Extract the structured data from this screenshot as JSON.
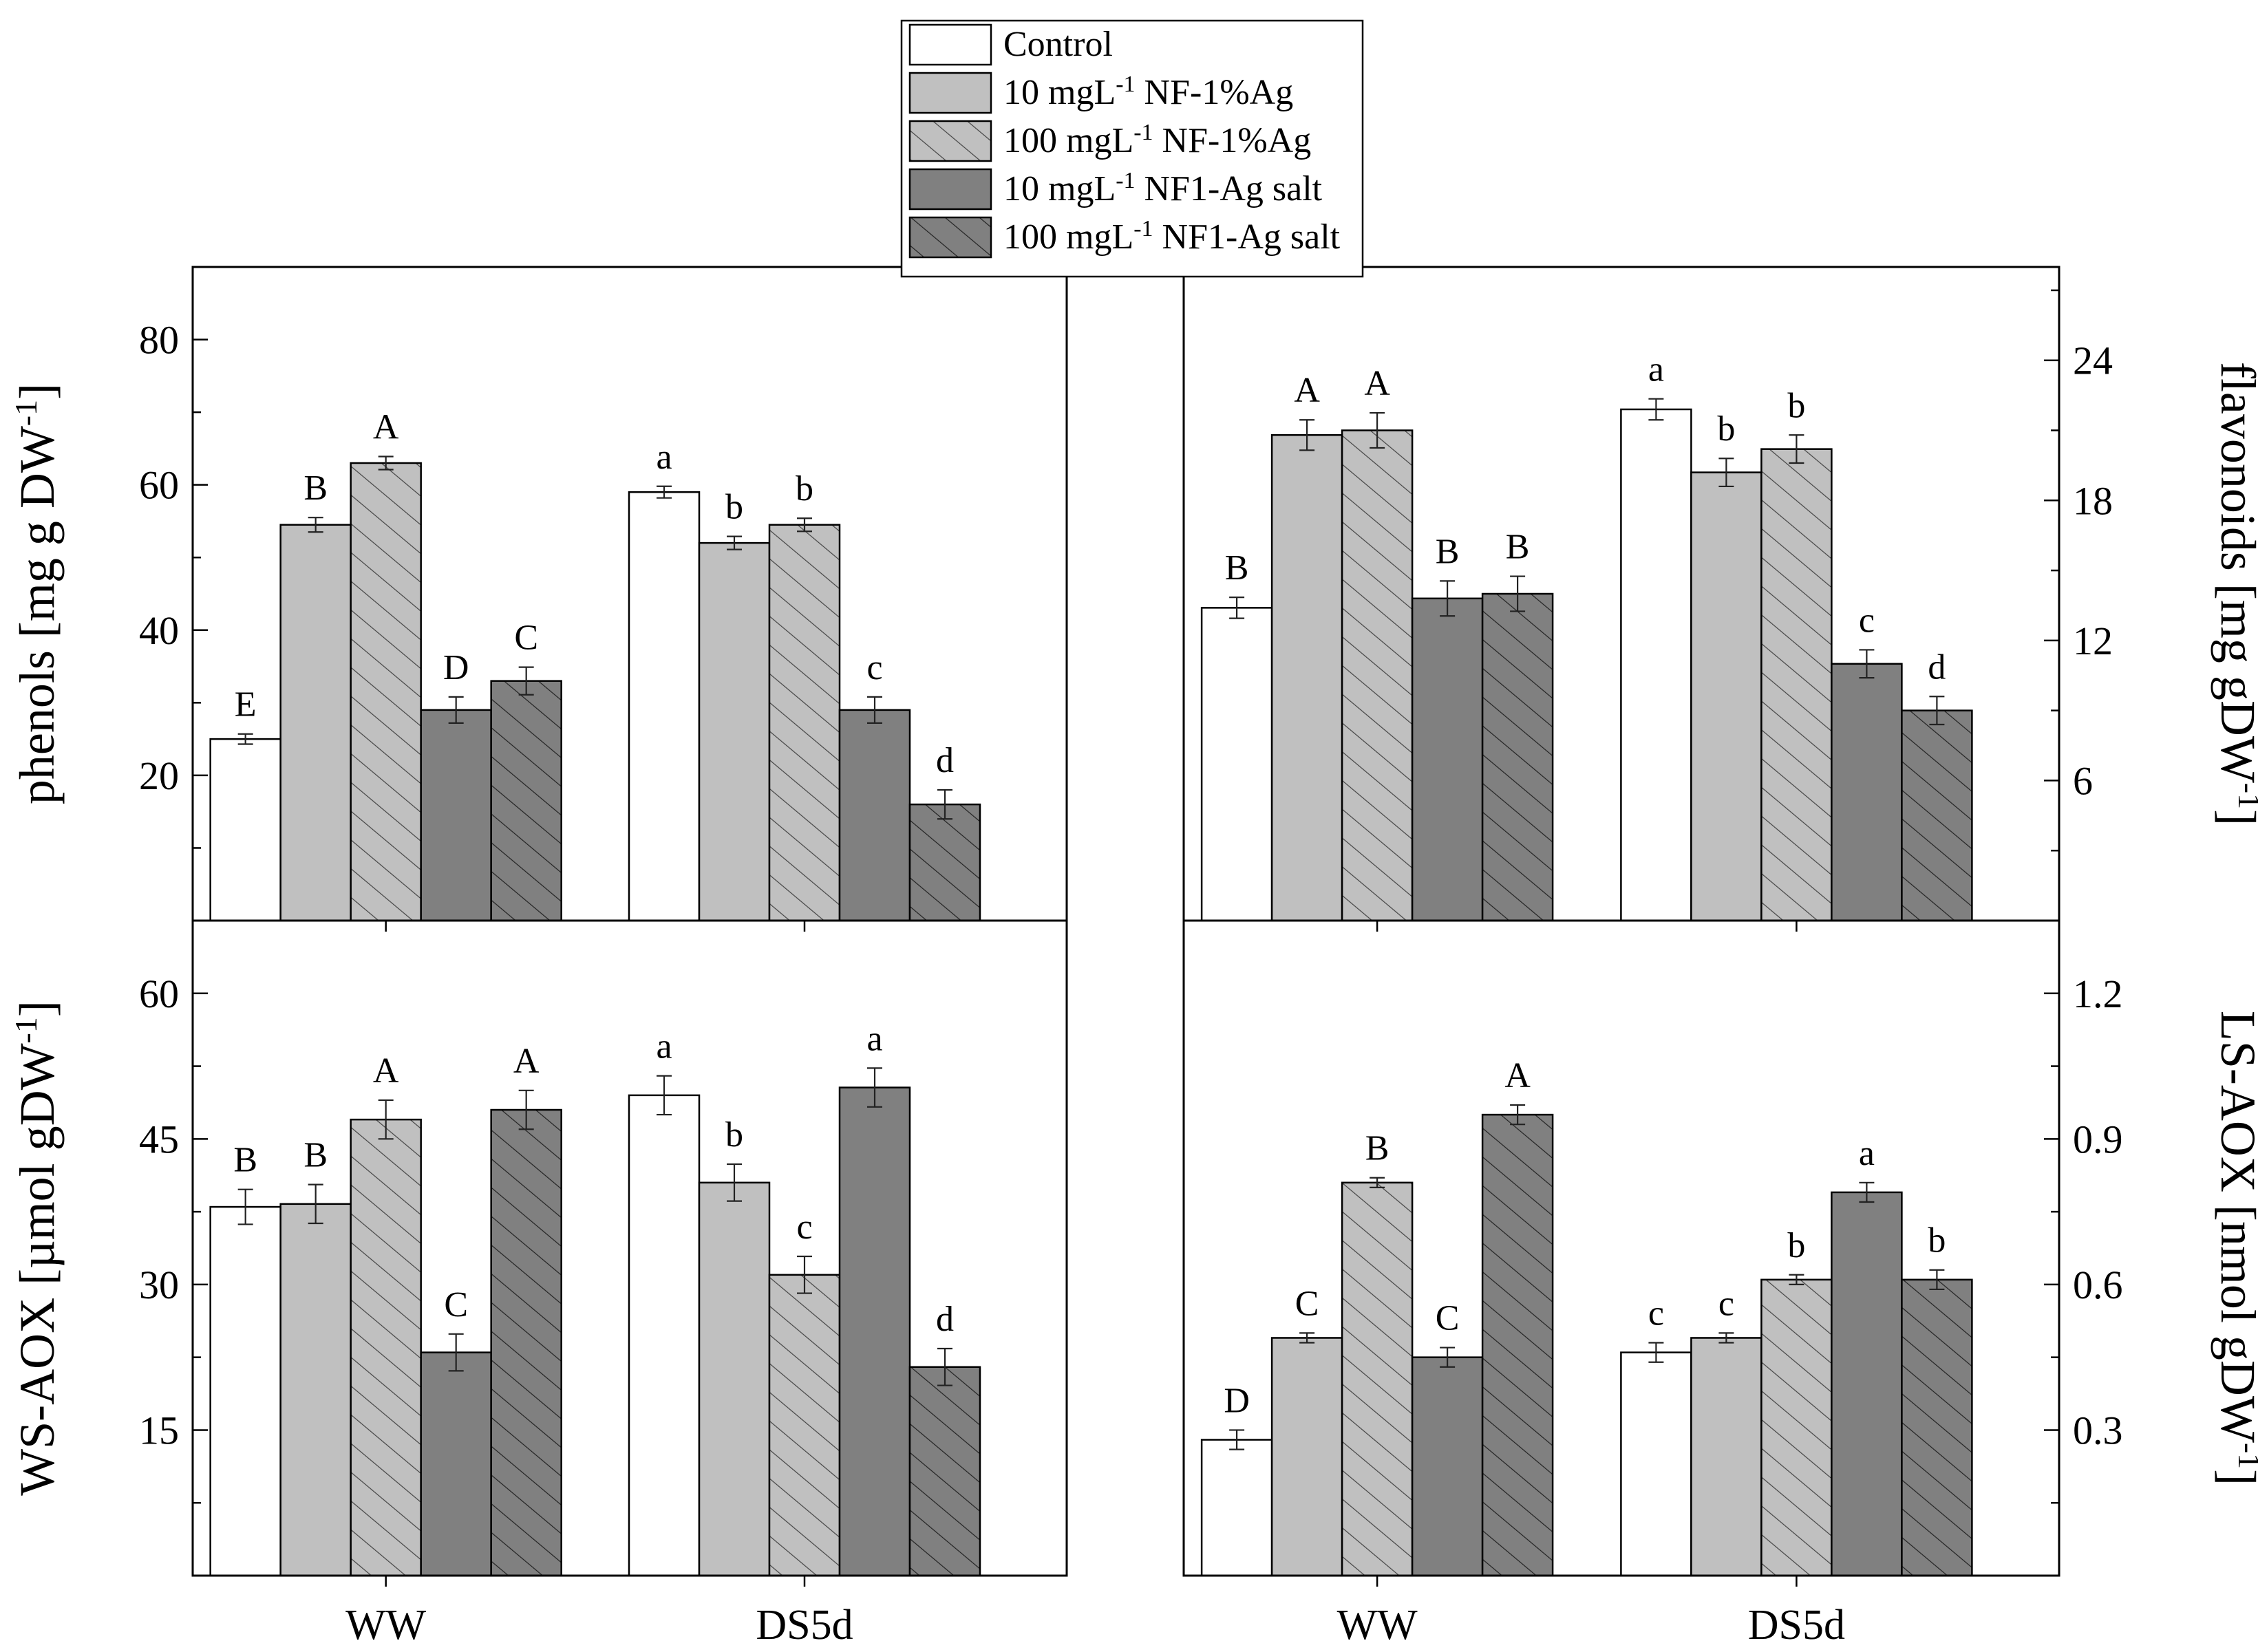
{
  "legend": [
    {
      "name": "Control",
      "value": "",
      "unit_exp": "",
      "agent": ""
    },
    {
      "name": "10 mgL-1 NF-1%Ag",
      "value": "10 mgL",
      "unit_exp": "-1",
      "agent": " NF-1%Ag"
    },
    {
      "name": "100 mgL-1 NF-1%Ag",
      "value": "100 mgL",
      "unit_exp": "-1",
      "agent": " NF-1%Ag"
    },
    {
      "name": "10 mgL-1 NF1-Ag salt",
      "value": "10 mgL",
      "unit_exp": "-1",
      "agent": " NF1-Ag salt"
    },
    {
      "name": "100 mgL-1 NF1-Ag salt",
      "value": "100 mgL",
      "unit_exp": "-1",
      "agent": " NF1-Ag salt"
    }
  ],
  "styles": {
    "fills": [
      "#ffffff",
      "#c0c0c0",
      "#c0c0c0",
      "#808080",
      "#808080"
    ],
    "hatched": [
      false,
      false,
      true,
      false,
      true
    ],
    "stroke": "#000000"
  },
  "chart_data": [
    {
      "id": "phenols",
      "type": "bar",
      "ylabel": "phenols [mg g DW",
      "ylabel_sup": "-1",
      "ylabel_tail": "]",
      "axis_side": "left",
      "ylim": [
        0,
        90
      ],
      "yticks": [
        20,
        40,
        60,
        80
      ],
      "ytick_labels": [
        "20",
        "40",
        "60",
        "80"
      ],
      "categories": [
        "WW",
        "DS5d"
      ],
      "show_x_labels": false,
      "series": [
        {
          "name": "Control",
          "values": [
            25,
            59
          ],
          "errors": [
            0.7,
            0.8
          ],
          "letters": [
            "E",
            "a"
          ]
        },
        {
          "name": "10 mgL-1 NF-1%Ag",
          "values": [
            54.5,
            52
          ],
          "errors": [
            1,
            0.9
          ],
          "letters": [
            "B",
            "b"
          ]
        },
        {
          "name": "100 mgL-1 NF-1%Ag",
          "values": [
            63,
            54.5
          ],
          "errors": [
            0.9,
            0.9
          ],
          "letters": [
            "A",
            "b"
          ]
        },
        {
          "name": "10 mgL-1 NF1-Ag salt",
          "values": [
            29,
            29
          ],
          "errors": [
            1.8,
            1.8
          ],
          "letters": [
            "D",
            "c"
          ]
        },
        {
          "name": "100 mgL-1 NF1-Ag salt",
          "values": [
            33,
            16
          ],
          "errors": [
            1.9,
            2
          ],
          "letters": [
            "C",
            "d"
          ]
        }
      ]
    },
    {
      "id": "flavonoids",
      "type": "bar",
      "ylabel": "flavonoids [mg gDW",
      "ylabel_sup": "-1",
      "ylabel_tail": "]",
      "axis_side": "right",
      "ylim": [
        0,
        28
      ],
      "yticks": [
        6,
        12,
        18,
        24
      ],
      "ytick_labels": [
        "6",
        "12",
        "18",
        "24"
      ],
      "categories": [
        "WW",
        "DS5d"
      ],
      "show_x_labels": false,
      "series": [
        {
          "name": "Control",
          "values": [
            13.4,
            21.9
          ],
          "errors": [
            0.45,
            0.45
          ],
          "letters": [
            "B",
            "a"
          ]
        },
        {
          "name": "10 mgL-1 NF-1%Ag",
          "values": [
            20.8,
            19.2
          ],
          "errors": [
            0.65,
            0.6
          ],
          "letters": [
            "A",
            "b"
          ]
        },
        {
          "name": "100 mgL-1 NF-1%Ag",
          "values": [
            21,
            20.2
          ],
          "errors": [
            0.75,
            0.6
          ],
          "letters": [
            "A",
            "b"
          ]
        },
        {
          "name": "10 mgL-1 NF1-Ag salt",
          "values": [
            13.8,
            11
          ],
          "errors": [
            0.75,
            0.6
          ],
          "letters": [
            "B",
            "c"
          ]
        },
        {
          "name": "100 mgL-1 NF1-Ag salt",
          "values": [
            14,
            9
          ],
          "errors": [
            0.75,
            0.6
          ],
          "letters": [
            "B",
            "d"
          ]
        }
      ]
    },
    {
      "id": "ws-aox",
      "type": "bar",
      "ylabel": "WS-AOX [µmol gDW",
      "ylabel_sup": "-1",
      "ylabel_tail": "]",
      "axis_side": "left",
      "ylim": [
        0,
        67.5
      ],
      "yticks": [
        15,
        30,
        45,
        60
      ],
      "ytick_labels": [
        "15",
        "30",
        "45",
        "60"
      ],
      "categories": [
        "WW",
        "DS5d"
      ],
      "show_x_labels": true,
      "series": [
        {
          "name": "Control",
          "values": [
            38,
            49.5
          ],
          "errors": [
            1.8,
            2
          ],
          "letters": [
            "B",
            "a"
          ]
        },
        {
          "name": "10 mgL-1 NF-1%Ag",
          "values": [
            38.3,
            40.5
          ],
          "errors": [
            2,
            1.9
          ],
          "letters": [
            "B",
            "b"
          ]
        },
        {
          "name": "100 mgL-1 NF-1%Ag",
          "values": [
            47,
            31
          ],
          "errors": [
            2,
            1.9
          ],
          "letters": [
            "A",
            "c"
          ]
        },
        {
          "name": "10 mgL-1 NF1-Ag salt",
          "values": [
            23,
            50.3
          ],
          "errors": [
            1.9,
            2
          ],
          "letters": [
            "C",
            "a"
          ]
        },
        {
          "name": "100 mgL-1 NF1-Ag salt",
          "values": [
            48,
            21.5
          ],
          "errors": [
            2,
            1.9
          ],
          "letters": [
            "A",
            "d"
          ]
        }
      ]
    },
    {
      "id": "ls-aox",
      "type": "bar",
      "ylabel": "LS-AOX [nmol gDW",
      "ylabel_sup": "-1",
      "ylabel_tail": "]",
      "axis_side": "right",
      "ylim": [
        0,
        1.35
      ],
      "yticks": [
        0.3,
        0.6,
        0.9,
        1.2
      ],
      "ytick_labels": [
        "0.3",
        "0.6",
        "0.9",
        "1.2"
      ],
      "categories": [
        "WW",
        "DS5d"
      ],
      "show_x_labels": true,
      "series": [
        {
          "name": "Control",
          "values": [
            0.28,
            0.46
          ],
          "errors": [
            0.02,
            0.02
          ],
          "letters": [
            "D",
            "c"
          ]
        },
        {
          "name": "10 mgL-1 NF-1%Ag",
          "values": [
            0.49,
            0.49
          ],
          "errors": [
            0.01,
            0.01
          ],
          "letters": [
            "C",
            "c"
          ]
        },
        {
          "name": "100 mgL-1 NF-1%Ag",
          "values": [
            0.81,
            0.61
          ],
          "errors": [
            0.01,
            0.01
          ],
          "letters": [
            "B",
            "b"
          ]
        },
        {
          "name": "10 mgL-1 NF1-Ag salt",
          "values": [
            0.45,
            0.79
          ],
          "errors": [
            0.02,
            0.02
          ],
          "letters": [
            "C",
            "a"
          ]
        },
        {
          "name": "100 mgL-1 NF1-Ag salt",
          "values": [
            0.95,
            0.61
          ],
          "errors": [
            0.02,
            0.02
          ],
          "letters": [
            "A",
            "b"
          ]
        }
      ]
    }
  ]
}
